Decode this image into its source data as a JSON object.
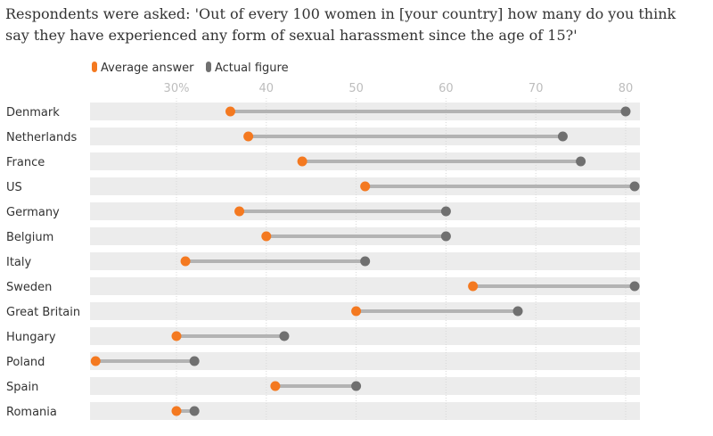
{
  "title": "Respondents were asked: 'Out of every 100 women in [your country] how many do you think say they have experienced any form of sexual harassment since the age of 15?'",
  "colors": {
    "average": "#f47920",
    "actual": "#707070",
    "connector": "#b3b3b3",
    "row_band": "#ececec"
  },
  "chart_data": {
    "type": "dot-plot",
    "x_ticks": [
      "30%",
      "40",
      "50",
      "60",
      "70",
      "80"
    ],
    "x_tick_values": [
      30,
      40,
      50,
      60,
      70,
      80
    ],
    "xlim": [
      20,
      82
    ],
    "legend": [
      {
        "label": "Average answer",
        "color": "#f47920"
      },
      {
        "label": "Actual figure",
        "color": "#707070"
      }
    ],
    "series_keys": [
      "average",
      "actual"
    ],
    "categories": [
      "Denmark",
      "Netherlands",
      "France",
      "US",
      "Germany",
      "Belgium",
      "Italy",
      "Sweden",
      "Great Britain",
      "Hungary",
      "Poland",
      "Spain",
      "Romania"
    ],
    "series": [
      {
        "name": "Average answer",
        "values": [
          36,
          38,
          44,
          51,
          37,
          40,
          31,
          63,
          50,
          30,
          21,
          41,
          30
        ]
      },
      {
        "name": "Actual figure",
        "values": [
          80,
          73,
          75,
          81,
          60,
          60,
          51,
          81,
          68,
          42,
          32,
          50,
          32
        ]
      }
    ]
  }
}
